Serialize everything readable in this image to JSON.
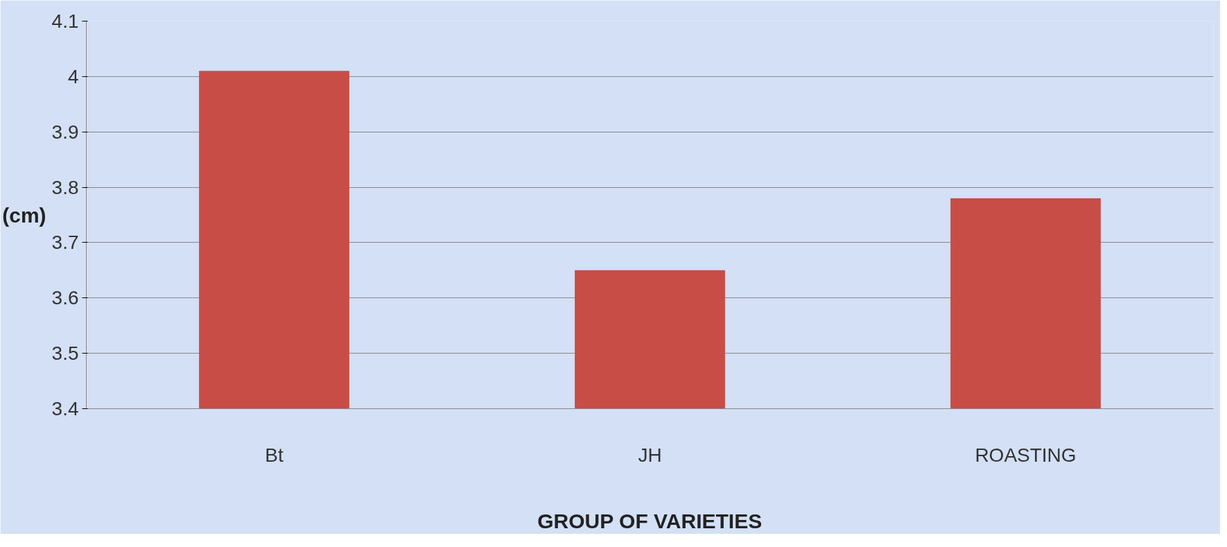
{
  "chart_data": {
    "type": "bar",
    "xlabel": "GROUP OF VARIETIES",
    "ylabel": "(cm)",
    "categories": [
      "Bt",
      "JH",
      "ROASTING"
    ],
    "values": [
      4.01,
      3.65,
      3.78
    ],
    "color": "#c84d47",
    "ylim": [
      3.4,
      4.1
    ],
    "yticks": [
      3.4,
      3.5,
      3.6,
      3.7,
      3.8,
      3.9,
      4,
      4.1
    ],
    "grid": "y"
  }
}
